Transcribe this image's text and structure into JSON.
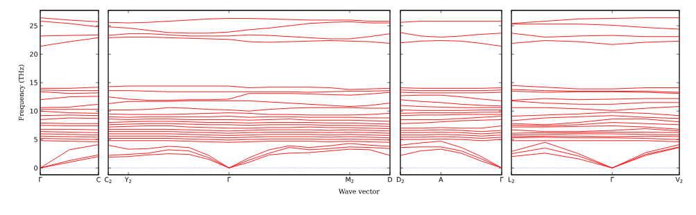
{
  "chart_data": [
    {
      "type": "line",
      "ylabel": "Frequency (THz)",
      "color": "#ff0000",
      "categories": [
        "Γ",
        null,
        "C"
      ],
      "ylim": [
        -1.2,
        27.7
      ],
      "yticks": [
        0,
        5,
        10,
        15,
        20,
        25
      ],
      "ref_lines": [
        {
          "axis": "y",
          "value": 0,
          "color": "#0000ff",
          "line_style": "dotted"
        }
      ],
      "series": [
        {
          "values": [
            0,
            1.0,
            2.0
          ]
        },
        {
          "values": [
            0,
            1.3,
            2.3
          ]
        },
        {
          "values": [
            0,
            3.2,
            4.1
          ]
        },
        {
          "values": [
            4.8,
            4.7,
            4.6
          ]
        },
        {
          "values": [
            5.2,
            5.1,
            5.0
          ]
        },
        {
          "values": [
            5.6,
            5.5,
            5.4
          ]
        },
        {
          "values": [
            6.0,
            5.9,
            5.8
          ]
        },
        {
          "values": [
            6.4,
            6.3,
            6.2
          ]
        },
        {
          "values": [
            6.8,
            6.8,
            6.7
          ]
        },
        {
          "values": [
            7.5,
            7.4,
            7.4
          ]
        },
        {
          "values": [
            7.9,
            7.8,
            7.8
          ]
        },
        {
          "values": [
            8.5,
            8.8,
            8.7
          ]
        },
        {
          "values": [
            9.2,
            9.3,
            9.2
          ]
        },
        {
          "values": [
            10.0,
            9.7,
            9.6
          ]
        },
        {
          "values": [
            10.3,
            10.3,
            10.3
          ]
        },
        {
          "values": [
            10.6,
            10.7,
            11.2
          ]
        },
        {
          "values": [
            12.0,
            12.5,
            12.6
          ]
        },
        {
          "values": [
            13.4,
            13.1,
            13.2
          ]
        },
        {
          "values": [
            13.7,
            13.6,
            13.6
          ]
        },
        {
          "values": [
            14.0,
            14.0,
            14.2
          ]
        },
        {
          "values": [
            21.4,
            22.2,
            22.9
          ]
        },
        {
          "values": [
            23.2,
            23.3,
            23.4
          ]
        },
        {
          "values": [
            25.8,
            25.4,
            24.8
          ]
        },
        {
          "values": [
            26.4,
            26.0,
            25.7
          ]
        }
      ]
    },
    {
      "type": "line",
      "xlabel": "Wave vector",
      "color": "#ff0000",
      "tick_labels": "x",
      "categories": [
        "C$_{2}$",
        "Y$_{2}$",
        null,
        null,
        null,
        null,
        "Γ",
        null,
        null,
        null,
        null,
        null,
        "M$_{2}$",
        null,
        "D"
      ],
      "ylim": [
        -1.2,
        27.7
      ],
      "yticks": [
        0,
        5,
        10,
        15,
        20,
        25
      ],
      "ref_lines": [
        {
          "axis": "y",
          "value": 0,
          "color": "#0000ff",
          "line_style": "dotted"
        }
      ],
      "series": [
        {
          "values": [
            1.9,
            2.0,
            2.3,
            2.5,
            2.4,
            1.5,
            0,
            1.0,
            2.3,
            2.6,
            2.7,
            3.0,
            3.3,
            3.2,
            2.2
          ]
        },
        {
          "values": [
            2.2,
            2.4,
            2.6,
            3.2,
            3.0,
            1.8,
            0,
            1.4,
            2.6,
            3.6,
            3.2,
            3.4,
            3.7,
            3.6,
            3.4
          ]
        },
        {
          "values": [
            4.0,
            3.3,
            3.4,
            3.8,
            3.6,
            2.2,
            0,
            1.8,
            3.2,
            3.9,
            3.6,
            3.9,
            4.3,
            4.0,
            3.8
          ]
        },
        {
          "values": [
            4.8,
            4.8,
            4.8,
            4.8,
            4.7,
            4.6,
            4.5,
            4.6,
            4.7,
            4.7,
            4.7,
            4.6,
            4.7,
            4.6,
            4.5
          ]
        },
        {
          "values": [
            5.2,
            5.2,
            5.2,
            5.2,
            5.1,
            5.0,
            4.9,
            5.0,
            5.1,
            5.1,
            5.1,
            5.0,
            5.1,
            5.0,
            4.9
          ]
        },
        {
          "values": [
            5.6,
            5.6,
            5.6,
            5.6,
            5.5,
            5.4,
            5.3,
            5.4,
            5.5,
            5.5,
            5.5,
            5.4,
            5.5,
            5.4,
            5.3
          ]
        },
        {
          "values": [
            6.0,
            6.0,
            6.0,
            6.0,
            5.9,
            5.8,
            5.7,
            5.8,
            5.9,
            5.9,
            5.9,
            5.8,
            5.9,
            5.8,
            5.7
          ]
        },
        {
          "values": [
            6.4,
            6.4,
            6.4,
            6.4,
            6.3,
            6.2,
            6.1,
            6.2,
            6.3,
            6.3,
            6.3,
            6.2,
            6.3,
            6.2,
            6.1
          ]
        },
        {
          "values": [
            6.8,
            6.8,
            6.8,
            6.8,
            6.7,
            6.6,
            6.5,
            6.6,
            6.7,
            6.7,
            6.7,
            6.6,
            6.7,
            6.6,
            6.5
          ]
        },
        {
          "values": [
            7.2,
            7.3,
            7.4,
            7.4,
            7.2,
            7.1,
            7.0,
            7.0,
            7.1,
            7.1,
            7.2,
            7.1,
            7.1,
            7.0,
            6.9
          ]
        },
        {
          "values": [
            7.6,
            7.7,
            7.8,
            7.8,
            7.7,
            7.6,
            7.6,
            7.5,
            7.6,
            7.6,
            7.6,
            7.5,
            7.5,
            7.4,
            7.3
          ]
        },
        {
          "values": [
            8.0,
            8.1,
            8.2,
            8.2,
            8.1,
            8.0,
            8.0,
            7.9,
            8.0,
            8.0,
            8.0,
            7.9,
            7.9,
            7.8,
            7.7
          ]
        },
        {
          "values": [
            8.6,
            8.5,
            8.6,
            8.6,
            8.5,
            8.5,
            8.5,
            8.4,
            8.5,
            8.6,
            8.4,
            8.4,
            8.4,
            8.3,
            8.2
          ]
        },
        {
          "values": [
            9.0,
            8.9,
            9.0,
            9.0,
            9.0,
            9.0,
            9.1,
            8.9,
            9.0,
            9.0,
            8.9,
            8.9,
            8.9,
            8.8,
            8.8
          ]
        },
        {
          "values": [
            9.5,
            9.4,
            9.4,
            9.4,
            9.5,
            9.6,
            9.7,
            9.6,
            9.4,
            9.4,
            9.3,
            9.3,
            9.3,
            9.4,
            9.6
          ]
        },
        {
          "values": [
            10.2,
            10.2,
            10.3,
            10.6,
            10.5,
            10.3,
            10.2,
            10.0,
            10.3,
            10.5,
            10.6,
            10.6,
            10.6,
            10.5,
            10.5
          ]
        },
        {
          "values": [
            11.3,
            11.7,
            11.7,
            11.7,
            11.8,
            11.8,
            11.8,
            11.8,
            11.6,
            11.4,
            11.2,
            11.0,
            10.8,
            11.0,
            11.4
          ]
        },
        {
          "values": [
            12.5,
            12.1,
            11.9,
            11.9,
            12.0,
            12.0,
            12.1,
            13.1,
            13.1,
            13.1,
            13.0,
            12.9,
            12.8,
            13.0,
            13.3
          ]
        },
        {
          "values": [
            13.6,
            13.6,
            13.5,
            13.4,
            13.4,
            13.4,
            13.4,
            13.4,
            13.4,
            13.4,
            13.3,
            13.4,
            13.5,
            13.5,
            13.6
          ]
        },
        {
          "values": [
            14.3,
            14.4,
            14.4,
            14.4,
            14.4,
            14.4,
            14.4,
            14.1,
            14.2,
            14.2,
            14.2,
            14.1,
            13.8,
            13.9,
            14.0
          ]
        },
        {
          "values": [
            22.9,
            23.0,
            23.0,
            22.9,
            22.8,
            22.7,
            22.6,
            22.2,
            22.1,
            22.2,
            22.3,
            22.4,
            22.3,
            22.2,
            21.9
          ]
        },
        {
          "values": [
            23.3,
            23.6,
            23.6,
            23.4,
            23.2,
            23.2,
            23.2,
            23.4,
            23.3,
            23.1,
            22.9,
            22.7,
            22.7,
            23.1,
            23.6
          ]
        },
        {
          "values": [
            24.8,
            24.6,
            24.2,
            23.8,
            23.7,
            23.7,
            23.9,
            24.3,
            24.6,
            25.0,
            25.4,
            25.6,
            25.7,
            25.5,
            25.5
          ]
        },
        {
          "values": [
            25.6,
            25.5,
            25.6,
            25.8,
            26.0,
            26.2,
            26.3,
            26.3,
            26.2,
            26.1,
            26.0,
            26.0,
            26.0,
            25.8,
            25.8
          ]
        }
      ]
    },
    {
      "type": "line",
      "color": "#ff0000",
      "tick_labels": "x",
      "categories": [
        "D$_{2}$",
        null,
        "A",
        null,
        null,
        "Γ"
      ],
      "ylim": [
        -1.2,
        27.7
      ],
      "yticks": [
        0,
        5,
        10,
        15,
        20,
        25
      ],
      "ref_lines": [
        {
          "axis": "y",
          "value": 0,
          "color": "#0000ff",
          "line_style": "dotted"
        }
      ],
      "series": [
        {
          "values": [
            2.2,
            3.0,
            3.3,
            2.6,
            1.2,
            0
          ]
        },
        {
          "values": [
            3.6,
            3.7,
            3.7,
            3.0,
            1.6,
            0
          ]
        },
        {
          "values": [
            4.0,
            4.4,
            4.7,
            3.6,
            2.0,
            0
          ]
        },
        {
          "values": [
            5.0,
            5.0,
            5.1,
            5.0,
            4.8,
            5.0
          ]
        },
        {
          "values": [
            5.4,
            5.4,
            5.5,
            5.4,
            5.2,
            5.4
          ]
        },
        {
          "values": [
            5.8,
            5.8,
            5.9,
            5.8,
            5.6,
            5.8
          ]
        },
        {
          "values": [
            6.2,
            6.2,
            6.3,
            6.2,
            6.0,
            6.2
          ]
        },
        {
          "values": [
            6.6,
            6.6,
            6.7,
            6.6,
            6.4,
            6.6
          ]
        },
        {
          "values": [
            7.0,
            7.0,
            7.1,
            7.0,
            7.0,
            7.4
          ]
        },
        {
          "values": [
            7.8,
            7.9,
            8.1,
            8.3,
            8.4,
            8.5
          ]
        },
        {
          "values": [
            8.5,
            8.5,
            8.5,
            8.7,
            8.9,
            9.1
          ]
        },
        {
          "values": [
            9.2,
            9.3,
            9.3,
            9.4,
            9.4,
            9.4
          ]
        },
        {
          "values": [
            9.6,
            9.7,
            9.7,
            9.7,
            9.8,
            9.8
          ]
        },
        {
          "values": [
            10.2,
            10.1,
            10.1,
            10.1,
            10.2,
            10.2
          ]
        },
        {
          "values": [
            11.0,
            10.8,
            10.7,
            10.6,
            10.6,
            10.6
          ]
        },
        {
          "values": [
            12.0,
            11.7,
            11.5,
            11.2,
            11.0,
            10.9
          ]
        },
        {
          "values": [
            12.7,
            12.8,
            12.8,
            12.5,
            12.1,
            11.8
          ]
        },
        {
          "values": [
            13.3,
            13.2,
            13.2,
            13.2,
            13.2,
            13.3
          ]
        },
        {
          "values": [
            13.7,
            13.6,
            13.6,
            13.6,
            13.6,
            13.7
          ]
        },
        {
          "values": [
            14.1,
            14.0,
            14.0,
            14.0,
            14.0,
            14.1
          ]
        },
        {
          "values": [
            22.0,
            22.3,
            22.4,
            22.3,
            21.9,
            21.4
          ]
        },
        {
          "values": [
            23.8,
            23.2,
            23.0,
            23.2,
            23.5,
            23.7
          ]
        },
        {
          "values": [
            25.6,
            25.8,
            25.8,
            25.8,
            25.8,
            25.8
          ]
        }
      ]
    },
    {
      "type": "line",
      "color": "#ff0000",
      "tick_labels": "x",
      "categories": [
        "L$_{2}$",
        null,
        null,
        "Γ",
        null,
        "V$_{2}$"
      ],
      "ylim": [
        -1.2,
        27.7
      ],
      "yticks": [
        0,
        5,
        10,
        15,
        20,
        25
      ],
      "ref_lines": [
        {
          "axis": "y",
          "value": 0,
          "color": "#0000ff",
          "line_style": "dotted"
        }
      ],
      "series": [
        {
          "values": [
            2.0,
            2.6,
            1.6,
            0,
            2.2,
            3.6
          ]
        },
        {
          "values": [
            2.5,
            3.5,
            2.1,
            0,
            2.4,
            3.7
          ]
        },
        {
          "values": [
            2.9,
            4.5,
            2.5,
            0,
            2.7,
            4.1
          ]
        },
        {
          "values": [
            4.8,
            4.8,
            4.8,
            4.8,
            4.8,
            4.6
          ]
        },
        {
          "values": [
            5.3,
            5.4,
            5.3,
            5.3,
            5.2,
            5.0
          ]
        },
        {
          "values": [
            5.5,
            5.6,
            5.6,
            5.5,
            5.6,
            5.5
          ]
        },
        {
          "values": [
            5.8,
            5.9,
            6.0,
            6.0,
            5.9,
            5.8
          ]
        },
        {
          "values": [
            6.1,
            6.2,
            6.2,
            6.3,
            6.3,
            6.2
          ]
        },
        {
          "values": [
            6.7,
            6.4,
            6.4,
            6.6,
            6.9,
            6.5
          ]
        },
        {
          "values": [
            7.2,
            7.2,
            7.3,
            7.4,
            7.2,
            6.8
          ]
        },
        {
          "values": [
            7.5,
            7.4,
            7.6,
            8.0,
            7.8,
            7.6
          ]
        },
        {
          "values": [
            7.8,
            7.6,
            8.0,
            8.6,
            8.6,
            8.1
          ]
        },
        {
          "values": [
            8.3,
            8.8,
            9.0,
            9.2,
            8.9,
            8.7
          ]
        },
        {
          "values": [
            9.1,
            9.3,
            9.5,
            9.8,
            9.6,
            9.2
          ]
        },
        {
          "values": [
            10.6,
            10.6,
            10.4,
            10.1,
            10.5,
            10.8
          ]
        },
        {
          "values": [
            11.8,
            11.4,
            11.2,
            11.2,
            11.5,
            11.5
          ]
        },
        {
          "values": [
            11.9,
            12.2,
            12.0,
            12.1,
            12.2,
            12.2
          ]
        },
        {
          "values": [
            13.5,
            13.3,
            13.4,
            13.4,
            13.3,
            13.1
          ]
        },
        {
          "values": [
            13.8,
            13.6,
            13.5,
            13.5,
            13.5,
            13.3
          ]
        },
        {
          "values": [
            14.5,
            14.2,
            13.9,
            13.9,
            14.1,
            14.1
          ]
        },
        {
          "values": [
            21.9,
            22.4,
            22.2,
            21.7,
            22.1,
            22.3
          ]
        },
        {
          "values": [
            23.7,
            23.0,
            23.2,
            23.3,
            23.1,
            23.1
          ]
        },
        {
          "values": [
            25.3,
            25.3,
            25.3,
            25.1,
            24.7,
            24.4
          ]
        },
        {
          "values": [
            25.4,
            25.8,
            26.2,
            26.3,
            26.4,
            26.4
          ]
        }
      ]
    }
  ]
}
